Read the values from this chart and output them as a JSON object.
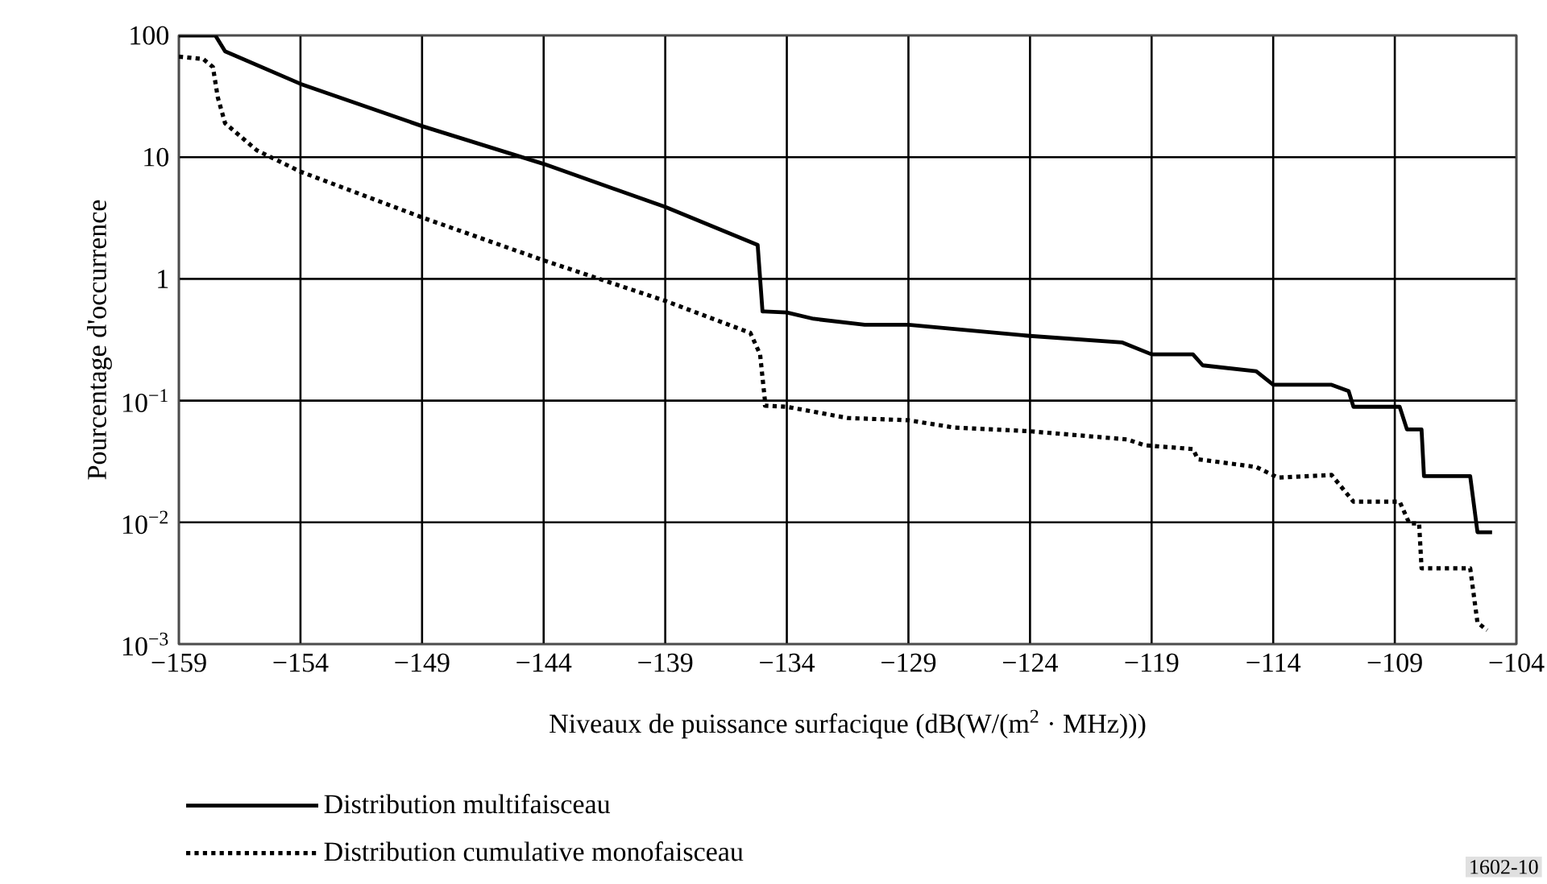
{
  "chart_data": {
    "type": "line",
    "log": "y",
    "grid": true,
    "legend": "bottom",
    "xlabel": "Niveaux de puissance surfacique (dB(W/(m$^{2}$ · MHz)))",
    "ylabel": "Pourcentage d'occurrence",
    "annotations": [
      "1602-10"
    ],
    "xlim": [
      -159,
      -104
    ],
    "xticks": [
      {
        "value": -159,
        "label": "−159"
      },
      {
        "value": -154,
        "label": "−154"
      },
      {
        "value": -149,
        "label": "−149"
      },
      {
        "value": -144,
        "label": "−144"
      },
      {
        "value": -139,
        "label": "−139"
      },
      {
        "value": -134,
        "label": "−134"
      },
      {
        "value": -129,
        "label": "−129"
      },
      {
        "value": -124,
        "label": "−124"
      },
      {
        "value": -119,
        "label": "−119"
      },
      {
        "value": -114,
        "label": "−114"
      },
      {
        "value": -109,
        "label": "−109"
      },
      {
        "value": -104,
        "label": "−104"
      }
    ],
    "ylim": [
      0.001,
      100
    ],
    "yticks": [
      {
        "value": 0.001,
        "label": "10$^{−3}$"
      },
      {
        "value": 0.01,
        "label": "10$^{−2}$"
      },
      {
        "value": 0.1,
        "label": "10$^{−1}$"
      },
      1,
      10,
      100
    ],
    "series": [
      {
        "name": "Distribution multifaisceau",
        "color": "#000000",
        "line_style": "solid",
        "x": [
          -159,
          -157.5,
          -157.1,
          -154,
          -149,
          -144,
          -139,
          -135.2,
          -135.0,
          -134.9,
          -134,
          -132.9,
          -130.8,
          -129,
          -127.3,
          -124,
          -120.2,
          -119,
          -117.3,
          -116.9,
          -114.7,
          -114,
          -111.6,
          -110.9,
          -110.7,
          -108.8,
          -108.5,
          -107.9,
          -107.8,
          -105.9,
          -105.6,
          -105.0
        ],
        "values": [
          100,
          100,
          74,
          40,
          18,
          8.8,
          3.9,
          1.9,
          0.54,
          0.54,
          0.53,
          0.47,
          0.42,
          0.42,
          0.39,
          0.34,
          0.3,
          0.24,
          0.24,
          0.195,
          0.174,
          0.135,
          0.135,
          0.12,
          0.089,
          0.089,
          0.058,
          0.058,
          0.024,
          0.024,
          0.0083,
          0.0083
        ]
      },
      {
        "name": "Distribution cumulative monofaisceau",
        "color": "#000000",
        "line_style": "dotted",
        "x": [
          -159,
          -158,
          -157.6,
          -157.4,
          -157.1,
          -155.8,
          -154,
          -149,
          -144,
          -139,
          -135.5,
          -135.1,
          -134.9,
          -134.9,
          -134,
          -131.5,
          -129,
          -127.1,
          -124,
          -120,
          -119.3,
          -117.3,
          -117.1,
          -114.7,
          -113.8,
          -111.6,
          -110.7,
          -108.8,
          -108.4,
          -108.0,
          -107.9,
          -105.9,
          -105.6,
          -105.2
        ],
        "values": [
          67,
          64,
          55,
          31,
          19,
          11.4,
          7.6,
          3.2,
          1.42,
          0.66,
          0.36,
          0.24,
          0.1,
          0.091,
          0.089,
          0.072,
          0.069,
          0.06,
          0.056,
          0.048,
          0.043,
          0.04,
          0.033,
          0.0285,
          0.0233,
          0.0245,
          0.0148,
          0.0148,
          0.0098,
          0.0098,
          0.0042,
          0.0042,
          0.0015,
          0.0013
        ]
      }
    ]
  }
}
